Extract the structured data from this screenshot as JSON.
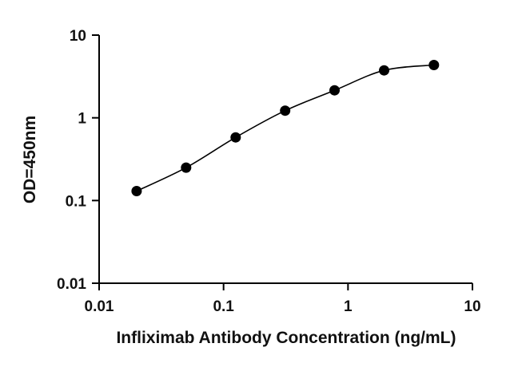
{
  "chart_data": {
    "type": "scatter",
    "title": "",
    "xlabel": "Infliximab Antibody Concentration (ng/mL)",
    "ylabel": "OD=450nm",
    "x_scale": "log",
    "y_scale": "log",
    "xlim": [
      0.01,
      10
    ],
    "ylim": [
      0.01,
      10
    ],
    "x_ticks": [
      {
        "value": 0.01,
        "label": "0.01"
      },
      {
        "value": 0.1,
        "label": "0.1"
      },
      {
        "value": 1,
        "label": "1"
      },
      {
        "value": 10,
        "label": "10"
      }
    ],
    "y_ticks": [
      {
        "value": 0.01,
        "label": "0.01"
      },
      {
        "value": 0.1,
        "label": "0.1"
      },
      {
        "value": 1,
        "label": "1"
      },
      {
        "value": 10,
        "label": "10"
      }
    ],
    "grid": false,
    "legend": "none",
    "series": [
      {
        "x": [
          0.02,
          0.05,
          0.125,
          0.3125,
          0.78,
          1.95,
          4.9
        ],
        "y": [
          0.13,
          0.25,
          0.58,
          1.22,
          2.15,
          3.75,
          4.35
        ]
      }
    ],
    "fit_curve": true,
    "colors": {
      "points": "#000000",
      "line": "#000000",
      "axis": "#000000"
    }
  }
}
